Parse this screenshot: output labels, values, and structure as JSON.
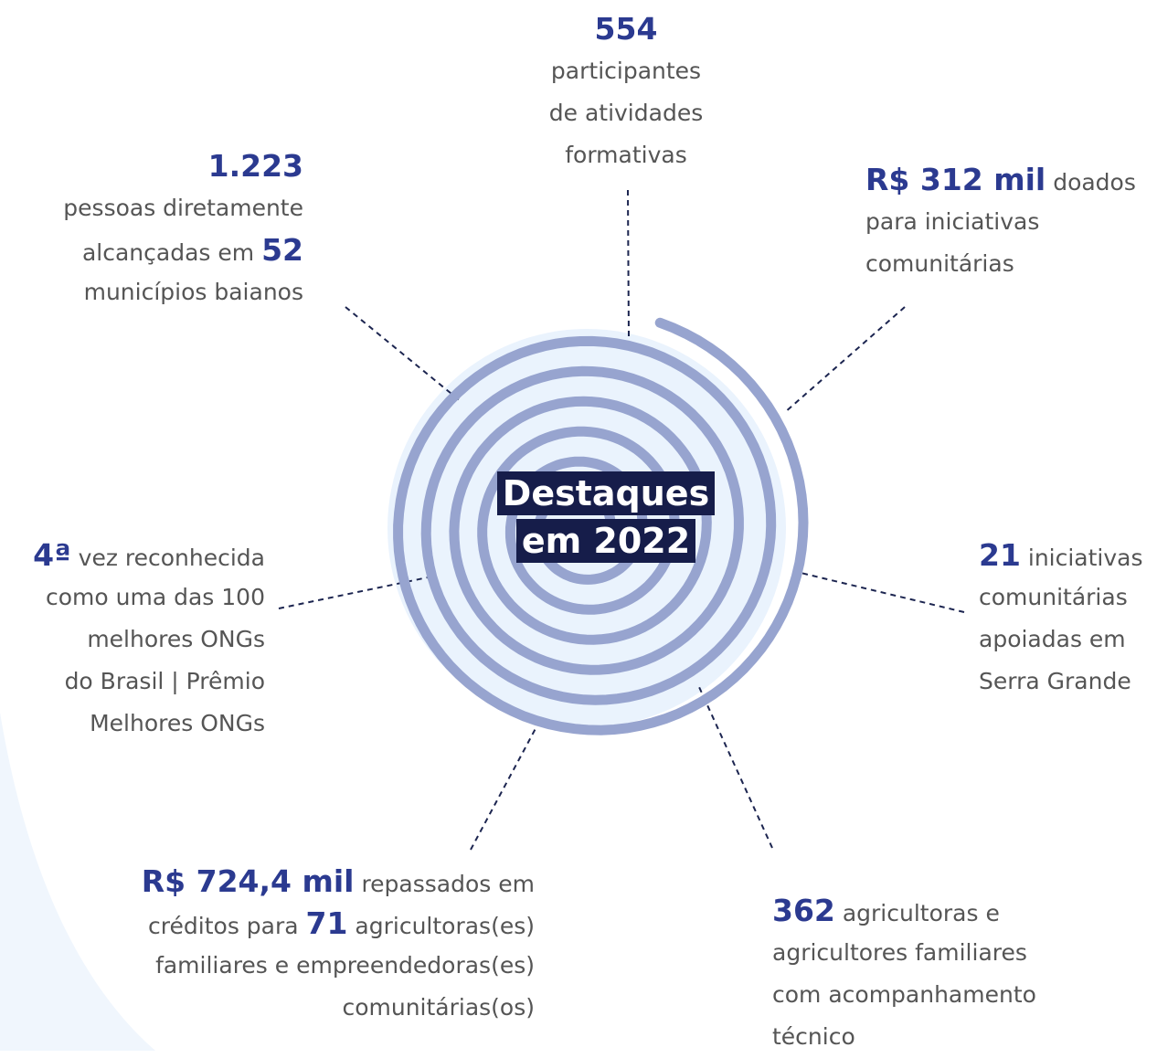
{
  "center": [
    "Destaques",
    "em 2022"
  ],
  "items": [
    {
      "lines": [
        [
          "554"
        ],
        [
          "participantes"
        ],
        [
          "de atividades"
        ],
        [
          "formativas"
        ]
      ]
    },
    {
      "lines": [
        [
          "1.223"
        ],
        [
          "pessoas diretamente"
        ],
        [
          "alcançadas em ",
          "52"
        ],
        [
          "municípios baianos"
        ]
      ]
    },
    {
      "lines": [
        [
          "R$ 312 mil",
          " doados"
        ],
        [
          "para iniciativas"
        ],
        [
          "comunitárias"
        ]
      ]
    },
    {
      "lines": [
        [
          "4ª",
          " vez reconhecida"
        ],
        [
          "como uma das 100"
        ],
        [
          "melhores ONGs"
        ],
        [
          "do Brasil | Prêmio"
        ],
        [
          "Melhores ONGs"
        ]
      ]
    },
    {
      "lines": [
        [
          "21",
          " iniciativas"
        ],
        [
          "comunitárias"
        ],
        [
          "apoiadas em"
        ],
        [
          "Serra Grande"
        ]
      ]
    },
    {
      "lines": [
        [
          "R$ 724,4 mil",
          " repassados em"
        ],
        [
          "créditos para ",
          "71",
          " agricultoras(es)"
        ],
        [
          "familiares e empreendedoras(es)"
        ],
        [
          "comunitárias(os)"
        ]
      ]
    },
    {
      "lines": [
        [
          "362",
          " agricultoras e"
        ],
        [
          "agricultores familiares"
        ],
        [
          "com acompanhamento"
        ],
        [
          "técnico"
        ]
      ]
    }
  ]
}
